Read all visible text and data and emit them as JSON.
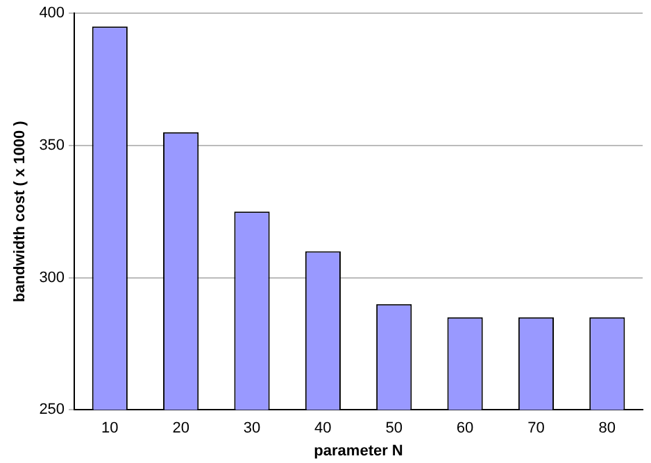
{
  "chart_data": {
    "type": "bar",
    "xlabel": "parameter N",
    "ylabel": "bandwidth cost ( x 1000 )",
    "categories": [
      "10",
      "20",
      "30",
      "40",
      "50",
      "60",
      "70",
      "80"
    ],
    "values": [
      395,
      355,
      325,
      310,
      290,
      285,
      285,
      285
    ],
    "color": "#9999ff",
    "ylim": [
      250,
      400
    ],
    "yticks": [
      250,
      300,
      350,
      400
    ],
    "grid": "y"
  }
}
